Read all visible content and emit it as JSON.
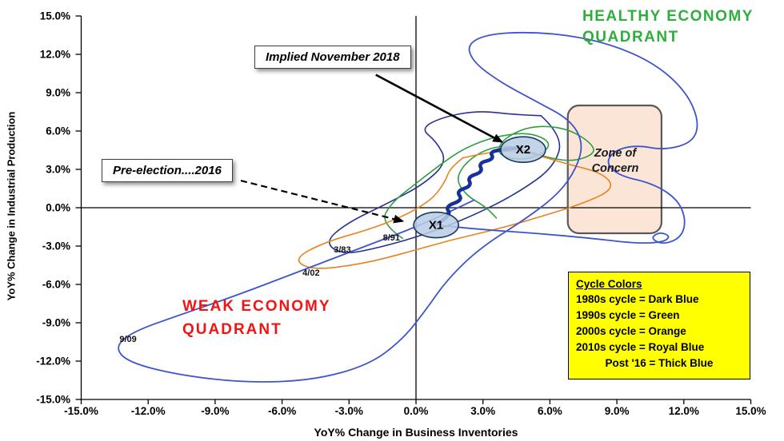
{
  "chart_data": {
    "type": "line",
    "title": "",
    "xlabel": "YoY% Change in Business Inventories",
    "ylabel": "YoY% Change in Industrial Production",
    "xlim": [
      -15,
      15
    ],
    "ylim": [
      -15,
      15
    ],
    "grid": false,
    "x_ticks": [
      "-15.0%",
      "-12.0%",
      "-9.0%",
      "-6.0%",
      "-3.0%",
      "0.0%",
      "3.0%",
      "6.0%",
      "9.0%",
      "12.0%",
      "15.0%"
    ],
    "y_ticks": [
      "15.0%",
      "12.0%",
      "9.0%",
      "6.0%",
      "3.0%",
      "0.0%",
      "-3.0%",
      "-6.0%",
      "-9.0%",
      "-12.0%",
      "-15.0%"
    ],
    "series": [
      {
        "name": "1980s cycle",
        "color": "#27318f",
        "width": 1.6,
        "points": [
          [
            5.6,
            7.2
          ],
          [
            6.6,
            5.6
          ],
          [
            6.2,
            3.2
          ],
          [
            4.6,
            1.2
          ],
          [
            2.6,
            -0.6
          ],
          [
            0.4,
            -2.1
          ],
          [
            -1.6,
            -3.1
          ],
          [
            -3.3,
            -3.7
          ],
          [
            -4.1,
            -2.7
          ],
          [
            -3.1,
            -1.2
          ],
          [
            -1.2,
            0.4
          ],
          [
            0.4,
            1.9
          ],
          [
            1.4,
            3.6
          ],
          [
            0.9,
            5.2
          ],
          [
            0.2,
            6.2
          ],
          [
            1.2,
            7.1
          ],
          [
            2.8,
            7.6
          ],
          [
            4.3,
            7.3
          ],
          [
            5.6,
            7.2
          ]
        ]
      },
      {
        "name": "1990s cycle",
        "color": "#2f9e41",
        "width": 1.6,
        "points": [
          [
            -0.6,
            -2.4
          ],
          [
            -1.6,
            -1.2
          ],
          [
            -1.1,
            0.4
          ],
          [
            0.0,
            1.9
          ],
          [
            1.1,
            3.4
          ],
          [
            2.2,
            4.7
          ],
          [
            3.6,
            5.6
          ],
          [
            5.1,
            5.9
          ],
          [
            6.1,
            5.1
          ],
          [
            5.6,
            4.1
          ],
          [
            4.6,
            3.7
          ],
          [
            3.6,
            4.2
          ],
          [
            3.9,
            5.4
          ],
          [
            5.1,
            6.4
          ],
          [
            6.6,
            6.3
          ],
          [
            7.7,
            5.3
          ],
          [
            8.1,
            4.3
          ],
          [
            7.1,
            3.6
          ],
          [
            5.9,
            3.9
          ],
          [
            4.9,
            4.5
          ],
          [
            3.9,
            4.9
          ],
          [
            2.9,
            4.4
          ],
          [
            2.1,
            3.3
          ],
          [
            1.8,
            2.1
          ],
          [
            2.3,
            0.9
          ],
          [
            3.1,
            0.1
          ],
          [
            3.6,
            -0.8
          ]
        ]
      },
      {
        "name": "2000s cycle",
        "color": "#e8821e",
        "width": 1.6,
        "points": [
          [
            2.1,
            3.9
          ],
          [
            3.6,
            4.5
          ],
          [
            5.1,
            4.3
          ],
          [
            6.6,
            3.5
          ],
          [
            8.4,
            2.7
          ],
          [
            8.9,
            1.5
          ],
          [
            7.6,
            0.4
          ],
          [
            5.6,
            -0.7
          ],
          [
            3.6,
            -1.7
          ],
          [
            1.6,
            -2.5
          ],
          [
            -0.4,
            -3.5
          ],
          [
            -2.4,
            -4.4
          ],
          [
            -4.7,
            -4.9
          ],
          [
            -5.5,
            -4.0
          ],
          [
            -4.1,
            -2.7
          ],
          [
            -2.1,
            -1.7
          ],
          [
            -0.6,
            -0.7
          ],
          [
            0.7,
            0.6
          ],
          [
            1.3,
            2.0
          ],
          [
            1.5,
            3.0
          ],
          [
            2.1,
            3.9
          ]
        ]
      },
      {
        "name": "2010s cycle",
        "color": "#3c55cc",
        "width": 1.8,
        "points": [
          [
            2.6,
            0.6
          ],
          [
            0.6,
            -1.1
          ],
          [
            -2.1,
            -2.9
          ],
          [
            -5.1,
            -4.9
          ],
          [
            -8.1,
            -6.9
          ],
          [
            -10.6,
            -8.4
          ],
          [
            -12.7,
            -9.7
          ],
          [
            -13.5,
            -10.9
          ],
          [
            -12.9,
            -12.1
          ],
          [
            -10.6,
            -13.1
          ],
          [
            -7.6,
            -13.7
          ],
          [
            -4.6,
            -13.5
          ],
          [
            -2.1,
            -12.3
          ],
          [
            -0.6,
            -10.3
          ],
          [
            0.4,
            -8.1
          ],
          [
            1.4,
            -5.6
          ],
          [
            2.9,
            -3.1
          ],
          [
            4.9,
            -0.9
          ],
          [
            6.4,
            1.1
          ],
          [
            7.2,
            3.1
          ],
          [
            7.5,
            5.1
          ],
          [
            6.9,
            6.9
          ],
          [
            5.4,
            8.3
          ],
          [
            3.7,
            9.9
          ],
          [
            2.5,
            11.5
          ],
          [
            2.3,
            12.9
          ],
          [
            3.5,
            13.7
          ],
          [
            6.1,
            13.7
          ],
          [
            8.6,
            12.9
          ],
          [
            10.7,
            11.3
          ],
          [
            12.1,
            9.1
          ],
          [
            12.7,
            6.7
          ],
          [
            12.4,
            5.1
          ],
          [
            11.1,
            4.5
          ],
          [
            9.9,
            4.9
          ],
          [
            8.9,
            4.5
          ],
          [
            8.5,
            3.5
          ],
          [
            9.1,
            2.5
          ],
          [
            10.6,
            1.9
          ],
          [
            11.7,
            0.7
          ],
          [
            12.1,
            -0.9
          ],
          [
            11.9,
            -2.3
          ],
          [
            11.1,
            -2.9
          ],
          [
            10.5,
            -2.4
          ],
          [
            10.9,
            -1.9
          ],
          [
            11.4,
            -2.2
          ],
          [
            11.1,
            -2.7
          ],
          [
            9.9,
            -2.8
          ],
          [
            7.9,
            -2.4
          ],
          [
            5.4,
            -2.0
          ],
          [
            2.9,
            -1.7
          ],
          [
            1.2,
            -1.4
          ]
        ]
      },
      {
        "name": "Post '16",
        "color": "#16309c",
        "width": 4.5,
        "points": [
          [
            0.9,
            -1.3
          ],
          [
            1.6,
            -0.6
          ],
          [
            1.3,
            0.1
          ],
          [
            2.1,
            0.6
          ],
          [
            1.8,
            1.3
          ],
          [
            2.5,
            1.7
          ],
          [
            2.3,
            2.4
          ],
          [
            3.0,
            2.8
          ],
          [
            2.8,
            3.5
          ],
          [
            3.5,
            3.8
          ],
          [
            3.3,
            4.4
          ],
          [
            4.1,
            4.6
          ],
          [
            4.7,
            4.7
          ]
        ]
      }
    ],
    "markers": [
      {
        "label": "X1",
        "x": 0.9,
        "y": -1.35
      },
      {
        "label": "X2",
        "x": 4.8,
        "y": 4.55
      }
    ],
    "point_labels": [
      {
        "text": "3/83",
        "x": -3.3,
        "y": -3.3
      },
      {
        "text": "8/91",
        "x": -1.1,
        "y": -2.4
      },
      {
        "text": "4/02",
        "x": -4.7,
        "y": -5.1
      },
      {
        "text": "9/09",
        "x": -12.9,
        "y": -10.3
      }
    ],
    "zone_of_concern": {
      "x1": 6.8,
      "x2": 11.0,
      "y1": -2.0,
      "y2": 8.0
    },
    "annotations": [
      {
        "text": "Implied November 2018",
        "style": "solid",
        "from": {
          "x": -1.8,
          "y": 10.4
        },
        "to": {
          "x": 3.85,
          "y": 5.15
        }
      },
      {
        "text": "Pre-election....2016",
        "style": "dashed",
        "from": {
          "x": -7.85,
          "y": 2.12
        },
        "to": {
          "x": -0.6,
          "y": -1.05
        }
      }
    ],
    "legend": {
      "title": "Cycle Colors",
      "bg": "#ffff00",
      "items": [
        "1980s cycle = Dark Blue",
        "1990s cycle = Green",
        "2000s cycle = Orange",
        "2010s cycle = Royal Blue",
        "Post '16 = Thick Blue"
      ],
      "position": "bottom-right"
    }
  },
  "labels": {
    "healthy_quadrant": [
      "HEALTHY ECONOMY",
      "QUADRANT"
    ],
    "weak_quadrant": [
      "WEAK ECONOMY",
      "QUADRANT"
    ],
    "zone": [
      "Zone of",
      "Concern"
    ]
  },
  "colors": {
    "healthy_green": "#2fae3d",
    "weak_red": "#f51212",
    "zone_fill": "#fbe5d6",
    "zone_border": "#595959",
    "legend_bg": "#ffff00",
    "marker_fill": "#b9cde5",
    "marker_border": "#17375e",
    "axis": "#000000"
  }
}
